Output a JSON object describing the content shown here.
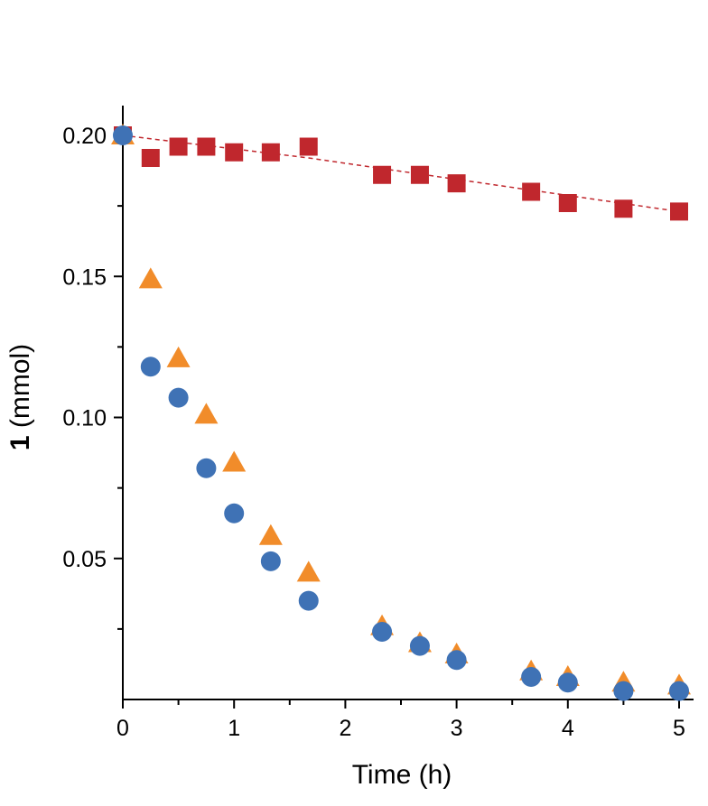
{
  "chart_data": {
    "type": "scatter",
    "xlabel": "Time (h)",
    "ylabel_bold": "1",
    "ylabel_rest": " (mmol)",
    "xlim": [
      0,
      5.1
    ],
    "ylim": [
      0.0,
      0.21
    ],
    "x_ticks": [
      0,
      1,
      2,
      3,
      4,
      5
    ],
    "y_ticks": [
      0.05,
      0.1,
      0.15,
      0.2
    ],
    "y_tick_labels": [
      "0.05",
      "0.10",
      "0.15",
      "0.20"
    ],
    "grid": false,
    "legend": "none",
    "series": [
      {
        "marker": "square",
        "color": "#c0272d",
        "trend_line": "dashed",
        "x": [
          0,
          0.25,
          0.5,
          0.75,
          1.0,
          1.33,
          1.67,
          2.33,
          2.67,
          3.0,
          3.67,
          4.0,
          4.5,
          5.0
        ],
        "y": [
          0.2,
          0.192,
          0.196,
          0.196,
          0.194,
          0.194,
          0.196,
          0.186,
          0.186,
          0.183,
          0.18,
          0.176,
          0.174,
          0.173
        ]
      },
      {
        "marker": "triangle",
        "color": "#f18c2a",
        "x": [
          0,
          0.25,
          0.5,
          0.75,
          1.0,
          1.33,
          1.67,
          2.33,
          2.67,
          3.0,
          3.67,
          4.0,
          4.5,
          5.0
        ],
        "y": [
          0.2,
          0.149,
          0.121,
          0.101,
          0.084,
          0.058,
          0.045,
          0.026,
          0.02,
          0.016,
          0.01,
          0.008,
          0.006,
          0.005
        ]
      },
      {
        "marker": "circle",
        "color": "#3f72b5",
        "x": [
          0,
          0.25,
          0.5,
          0.75,
          1.0,
          1.33,
          1.67,
          2.33,
          2.67,
          3.0,
          3.67,
          4.0,
          4.5,
          5.0
        ],
        "y": [
          0.2,
          0.118,
          0.107,
          0.082,
          0.066,
          0.049,
          0.035,
          0.024,
          0.019,
          0.014,
          0.008,
          0.006,
          0.003,
          0.003
        ]
      }
    ],
    "trend_line_red": {
      "x": [
        0,
        1.67,
        5.0
      ],
      "y": [
        0.2,
        0.192,
        0.173
      ]
    }
  }
}
